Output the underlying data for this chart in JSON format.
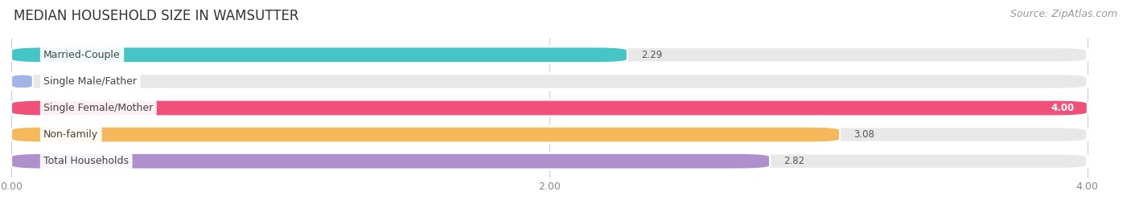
{
  "title": "MEDIAN HOUSEHOLD SIZE IN WAMSUTTER",
  "source": "Source: ZipAtlas.com",
  "categories": [
    "Married-Couple",
    "Single Male/Father",
    "Single Female/Mother",
    "Non-family",
    "Total Households"
  ],
  "values": [
    2.29,
    0.0,
    4.0,
    3.08,
    2.82
  ],
  "bar_colors": [
    "#45c5c5",
    "#a0b4e8",
    "#f0507a",
    "#f5b85a",
    "#b090cc"
  ],
  "xlim": [
    0,
    4.0
  ],
  "xticks": [
    0.0,
    2.0,
    4.0
  ],
  "xtick_labels": [
    "0.00",
    "2.00",
    "4.00"
  ],
  "background_color": "#ffffff",
  "bar_background_color": "#e8e8e8",
  "title_fontsize": 12,
  "source_fontsize": 9,
  "label_fontsize": 9,
  "value_fontsize": 8.5,
  "bar_height": 0.6,
  "label_color": "#555555",
  "value_label_color_inside": "#ffffff",
  "value_label_color_outside": "#888888"
}
